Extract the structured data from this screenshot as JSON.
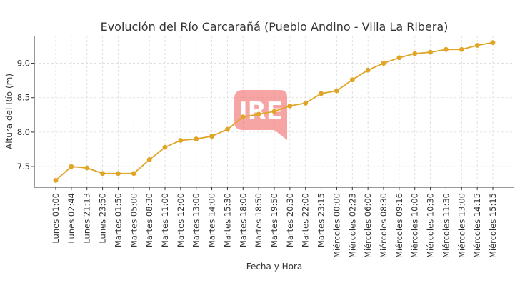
{
  "chart_data": {
    "type": "line",
    "title": "Evolución del Río Carcarañá (Pueblo Andino - Villa La Ribera)",
    "xlabel": "Fecha y Hora",
    "ylabel": "Altura del Río (m)",
    "ylim": [
      7.2,
      9.4
    ],
    "yticks": [
      7.5,
      8.0,
      8.5,
      9.0
    ],
    "ytick_labels": [
      "7.5",
      "8.0",
      "8.5",
      "9.0"
    ],
    "grid": true,
    "colors": {
      "line": "#E0A526",
      "grid": "#d9d9d9",
      "watermark": "#F05A5A"
    },
    "watermark": {
      "text": "IRE"
    },
    "categories": [
      "Lunes 01:00",
      "Lunes 02:44",
      "Lunes 21:13",
      "Lunes 23:50",
      "Martes 01:50",
      "Martes 05:00",
      "Martes 08:30",
      "Martes 11:00",
      "Martes 12:00",
      "Martes 13:00",
      "Martes 14:00",
      "Martes 15:30",
      "Martes 18:00",
      "Martes 18:50",
      "Martes 19:50",
      "Martes 20:30",
      "Martes 22:00",
      "Martes 23:15",
      "Miércoles 00:00",
      "Miércoles 02:23",
      "Miércoles 06:00",
      "Miércoles 08:30",
      "Miércoles 09:16",
      "Miércoles 10:00",
      "Miércoles 10:30",
      "Miércoles 11:30",
      "Miércoles 13:00",
      "Miércoles 14:15",
      "Miércoles 15:15"
    ],
    "values": [
      7.3,
      7.5,
      7.48,
      7.4,
      7.4,
      7.4,
      7.6,
      7.78,
      7.88,
      7.9,
      7.94,
      8.04,
      8.22,
      8.26,
      8.3,
      8.38,
      8.42,
      8.56,
      8.6,
      8.76,
      8.9,
      9.0,
      9.08,
      9.14,
      9.16,
      9.2,
      9.2,
      9.26,
      9.3
    ]
  }
}
